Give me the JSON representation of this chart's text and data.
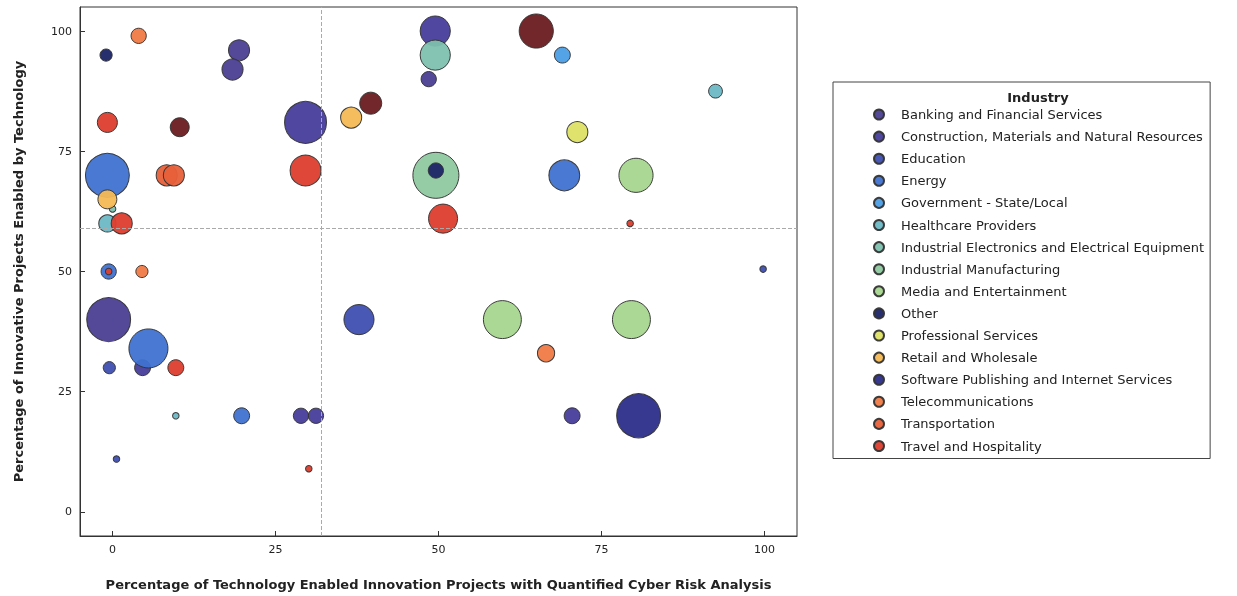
{
  "chart_data": {
    "type": "bubble",
    "xlabel": "Percentage of Technology Enabled Innovation Projects with Quantified Cyber Risk Analysis",
    "ylabel": "Percentage of Innovative Projects Enabled by Technology",
    "legend_title": "Industry",
    "legend": "right",
    "marker": "circle",
    "xlim": [
      -5,
      105
    ],
    "xticks": [
      0,
      25,
      50,
      75,
      100
    ],
    "ylim": [
      -5,
      105
    ],
    "yticks": [
      0,
      25,
      50,
      75,
      100
    ],
    "ref_lines": [
      {
        "axis": "x",
        "value": 32,
        "label": null,
        "color": "#aaaaaa",
        "line_style": "dashed"
      },
      {
        "axis": "y",
        "value": 59,
        "label": null,
        "color": "#aaaaaa",
        "line_style": "dashed"
      }
    ],
    "series": [
      {
        "name": "Banking and Financial Services",
        "color": "#4b3f94",
        "x": [
          -0.6,
          19.4,
          18.4,
          48.5
        ],
        "values": [
          40,
          96,
          92,
          90
        ],
        "sizes": [
          0.91,
          0.21,
          0.21,
          0.11
        ]
      },
      {
        "name": "Construction, Materials and Natural Resources",
        "color": "#473d9c",
        "x": [
          29.6,
          49.5,
          4.6,
          28.9,
          31.2,
          70.5
        ],
        "values": [
          81,
          100,
          30,
          20,
          20,
          20
        ],
        "sizes": [
          0.83,
          0.43,
          0.12,
          0.11,
          0.11,
          0.12
        ]
      },
      {
        "name": "Education",
        "color": "#3e4fb0",
        "x": [
          -0.5,
          37.8,
          99.8,
          0.6
        ],
        "values": [
          30,
          40,
          50.5,
          11
        ],
        "sizes": [
          0.07,
          0.43,
          0.02,
          0.02
        ]
      },
      {
        "name": "Energy",
        "color": "#3f72d0",
        "x": [
          -0.8,
          69.3,
          -0.6,
          5.5,
          19.8
        ],
        "values": [
          70,
          70,
          50,
          34,
          20
        ],
        "sizes": [
          0.91,
          0.45,
          0.11,
          0.72,
          0.12
        ]
      },
      {
        "name": "Government - State/Local",
        "color": "#4c9ee6",
        "x": [
          69
        ],
        "values": [
          95
        ],
        "sizes": [
          0.12
        ]
      },
      {
        "name": "Healthcare Providers",
        "color": "#6db8c4",
        "x": [
          -0.8,
          92.5,
          9.7
        ],
        "values": [
          60,
          87.5,
          20
        ],
        "sizes": [
          0.14,
          0.09,
          0.02
        ]
      },
      {
        "name": "Industrial Electronics and Electrical Equipment",
        "color": "#7ec0ae",
        "x": [
          49.5,
          0
        ],
        "values": [
          95,
          63
        ],
        "sizes": [
          0.43,
          0.02
        ]
      },
      {
        "name": "Industrial Manufacturing",
        "color": "#8fc9a0",
        "x": [
          49.6
        ],
        "values": [
          70
        ],
        "sizes": [
          1
        ]
      },
      {
        "name": "Media and Entertainment",
        "color": "#a6d68e",
        "x": [
          80.3,
          59.8,
          79.6
        ],
        "values": [
          70,
          40,
          40
        ],
        "sizes": [
          0.55,
          0.68,
          0.68
        ]
      },
      {
        "name": "Other",
        "color": "#1c2466",
        "x": [
          -1,
          49.6
        ],
        "values": [
          95,
          71
        ],
        "sizes": [
          0.07,
          0.11
        ]
      },
      {
        "name": "Professional Services",
        "color": "#dde065",
        "x": [
          71.3
        ],
        "values": [
          79
        ],
        "sizes": [
          0.21
        ]
      },
      {
        "name": "Retail and Wholesale",
        "color": "#f5b955",
        "x": [
          36.6,
          -0.8
        ],
        "values": [
          82,
          65
        ],
        "sizes": [
          0.21,
          0.17
        ]
      },
      {
        "name": "Software Publishing and Internet Services",
        "color": "#2c2e8a",
        "x": [
          80.7
        ],
        "values": [
          20
        ],
        "sizes": [
          0.91
        ]
      },
      {
        "name": "Telecommunications",
        "color": "#f07a45",
        "x": [
          4,
          4.5,
          66.5
        ],
        "values": [
          99,
          50,
          33
        ],
        "sizes": [
          0.11,
          0.07,
          0.14
        ]
      },
      {
        "name": "Transportation",
        "color": "#e8603a",
        "x": [
          8.3,
          9.4
        ],
        "values": [
          70,
          70
        ],
        "sizes": [
          0.21,
          0.21
        ]
      },
      {
        "name": "Travel and Hospitality",
        "color": "#dd3e2e",
        "x": [
          -0.8,
          29.6,
          1.4,
          50.7,
          9.7,
          79.4,
          30.1,
          -0.6
        ],
        "values": [
          81,
          71,
          60,
          61,
          30,
          60,
          9,
          50
        ],
        "sizes": [
          0.19,
          0.45,
          0.21,
          0.4,
          0.12,
          0.02,
          0.02,
          0.02
        ]
      },
      {
        "color": "#6a1b1f",
        "x": [
          10.3,
          39.6,
          65
        ],
        "values": [
          80,
          85,
          100
        ],
        "sizes": [
          0.17,
          0.23,
          0.55
        ]
      }
    ]
  }
}
